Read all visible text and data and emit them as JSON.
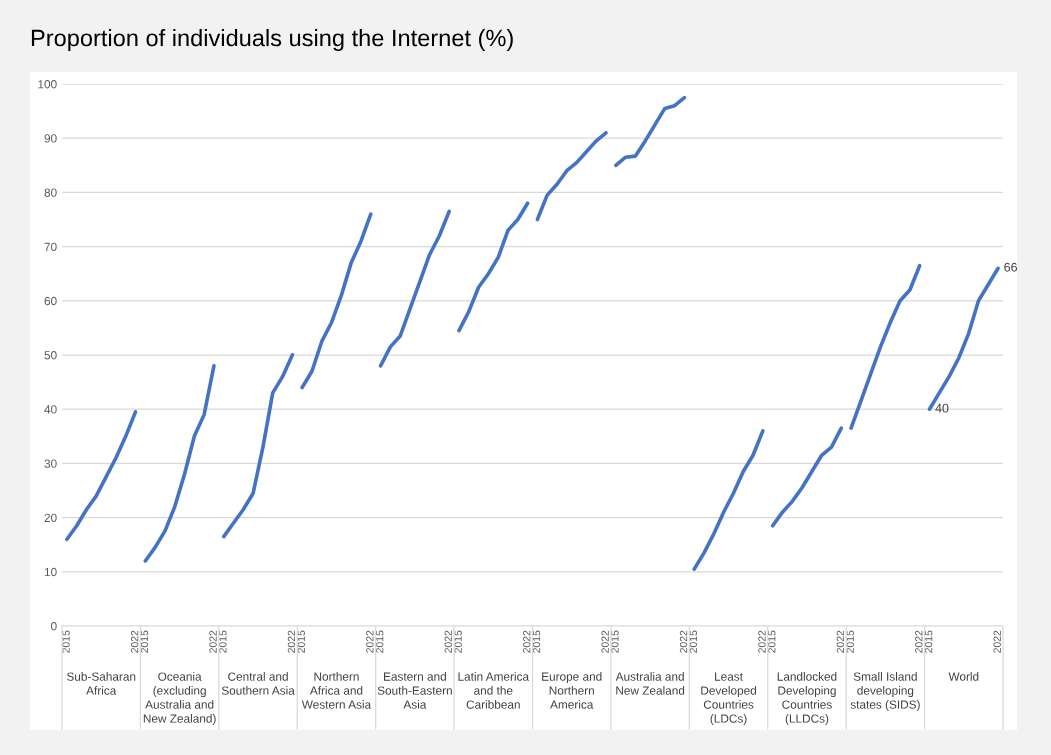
{
  "chart_data": {
    "type": "line",
    "title": "Proportion of individuals using the Internet (%)",
    "categories": [
      "2015",
      null,
      null,
      null,
      null,
      null,
      null,
      "2022",
      "2015",
      null,
      null,
      null,
      null,
      null,
      null,
      "2022",
      "2015",
      null,
      null,
      null,
      null,
      null,
      null,
      "2022",
      "2015",
      null,
      null,
      null,
      null,
      null,
      null,
      "2022",
      "2015",
      null,
      null,
      null,
      null,
      null,
      null,
      "2022",
      "2015",
      null,
      null,
      null,
      null,
      null,
      null,
      "2022",
      "2015",
      null,
      null,
      null,
      null,
      null,
      null,
      "2022",
      "2015",
      null,
      null,
      null,
      null,
      null,
      null,
      "2022",
      "2015",
      null,
      null,
      null,
      null,
      null,
      null,
      "2022",
      "2015",
      null,
      null,
      null,
      null,
      null,
      null,
      "2022",
      "2015",
      null,
      null,
      null,
      null,
      null,
      null,
      "2022",
      "2015",
      null,
      null,
      null,
      null,
      null,
      null,
      "2022"
    ],
    "ylim": [
      0,
      100
    ],
    "yticks": [
      0,
      10,
      20,
      30,
      40,
      50,
      60,
      70,
      80,
      90,
      100
    ],
    "grid": "y",
    "legend": false,
    "annotations": [
      "Sub-Saharan Africa",
      "Oceania (excluding Australia and New Zealand)",
      "Central and Southern Asia",
      "Northern Africa and Western Asia",
      "Eastern and South-Eastern Asia",
      "Latin America and the Caribbean",
      "Europe and Northern America",
      "Australia and New Zealand",
      "Least Developed Countries (LDCs)",
      "Landlocked Developing Countries (LLDCs)",
      "Small Island developing states (SIDS)",
      "World"
    ],
    "series": [
      {
        "color": "#4472c4",
        "values": [
          16,
          18.5,
          21.5,
          24,
          27.5,
          31,
          35,
          39.5,
          null,
          null,
          null,
          null,
          null,
          null,
          null,
          null,
          null,
          null,
          null,
          null,
          null,
          null,
          null,
          null,
          null,
          null,
          null,
          null,
          null,
          null,
          null,
          null,
          null,
          null,
          null,
          null,
          null,
          null,
          null,
          null,
          null,
          null,
          null,
          null,
          null,
          null,
          null,
          null,
          null,
          null,
          null,
          null,
          null,
          null,
          null,
          null,
          null,
          null,
          null,
          null,
          null,
          null,
          null,
          null,
          null,
          null,
          null,
          null,
          null,
          null,
          null,
          null,
          null,
          null,
          null,
          null,
          null,
          null,
          null,
          null,
          null,
          null,
          null,
          null,
          null,
          null,
          null,
          null,
          null,
          null,
          null,
          null,
          null,
          null,
          null,
          null
        ]
      },
      {
        "color": "#4472c4",
        "values": [
          null,
          null,
          null,
          null,
          null,
          null,
          null,
          null,
          12,
          14.5,
          17.5,
          22,
          28,
          35,
          39,
          48,
          null,
          null,
          null,
          null,
          null,
          null,
          null,
          null,
          null,
          null,
          null,
          null,
          null,
          null,
          null,
          null,
          null,
          null,
          null,
          null,
          null,
          null,
          null,
          null,
          null,
          null,
          null,
          null,
          null,
          null,
          null,
          null,
          null,
          null,
          null,
          null,
          null,
          null,
          null,
          null,
          null,
          null,
          null,
          null,
          null,
          null,
          null,
          null,
          null,
          null,
          null,
          null,
          null,
          null,
          null,
          null,
          null,
          null,
          null,
          null,
          null,
          null,
          null,
          null,
          null,
          null,
          null,
          null,
          null,
          null,
          null,
          null,
          null,
          null,
          null,
          null,
          null,
          null,
          null,
          null
        ]
      },
      {
        "color": "#4472c4",
        "values": [
          null,
          null,
          null,
          null,
          null,
          null,
          null,
          null,
          null,
          null,
          null,
          null,
          null,
          null,
          null,
          null,
          16.5,
          19,
          21.5,
          24.5,
          33,
          43,
          46,
          50,
          null,
          null,
          null,
          null,
          null,
          null,
          null,
          null,
          null,
          null,
          null,
          null,
          null,
          null,
          null,
          null,
          null,
          null,
          null,
          null,
          null,
          null,
          null,
          null,
          null,
          null,
          null,
          null,
          null,
          null,
          null,
          null,
          null,
          null,
          null,
          null,
          null,
          null,
          null,
          null,
          null,
          null,
          null,
          null,
          null,
          null,
          null,
          null,
          null,
          null,
          null,
          null,
          null,
          null,
          null,
          null,
          null,
          null,
          null,
          null,
          null,
          null,
          null,
          null,
          null,
          null,
          null,
          null,
          null,
          null,
          null,
          null
        ]
      },
      {
        "color": "#4472c4",
        "values": [
          null,
          null,
          null,
          null,
          null,
          null,
          null,
          null,
          null,
          null,
          null,
          null,
          null,
          null,
          null,
          null,
          null,
          null,
          null,
          null,
          null,
          null,
          null,
          null,
          44,
          47,
          52.5,
          56,
          61,
          67,
          71,
          76,
          null,
          null,
          null,
          null,
          null,
          null,
          null,
          null,
          null,
          null,
          null,
          null,
          null,
          null,
          null,
          null,
          null,
          null,
          null,
          null,
          null,
          null,
          null,
          null,
          null,
          null,
          null,
          null,
          null,
          null,
          null,
          null,
          null,
          null,
          null,
          null,
          null,
          null,
          null,
          null,
          null,
          null,
          null,
          null,
          null,
          null,
          null,
          null,
          null,
          null,
          null,
          null,
          null,
          null,
          null,
          null,
          null,
          null,
          null,
          null,
          null,
          null,
          null,
          null
        ]
      },
      {
        "color": "#4472c4",
        "values": [
          null,
          null,
          null,
          null,
          null,
          null,
          null,
          null,
          null,
          null,
          null,
          null,
          null,
          null,
          null,
          null,
          null,
          null,
          null,
          null,
          null,
          null,
          null,
          null,
          null,
          null,
          null,
          null,
          null,
          null,
          null,
          null,
          48,
          51.5,
          53.5,
          58.5,
          63.5,
          68.5,
          72,
          76.5,
          null,
          null,
          null,
          null,
          null,
          null,
          null,
          null,
          null,
          null,
          null,
          null,
          null,
          null,
          null,
          null,
          null,
          null,
          null,
          null,
          null,
          null,
          null,
          null,
          null,
          null,
          null,
          null,
          null,
          null,
          null,
          null,
          null,
          null,
          null,
          null,
          null,
          null,
          null,
          null,
          null,
          null,
          null,
          null,
          null,
          null,
          null,
          null,
          null,
          null,
          null,
          null,
          null,
          null,
          null,
          null
        ]
      },
      {
        "color": "#4472c4",
        "values": [
          null,
          null,
          null,
          null,
          null,
          null,
          null,
          null,
          null,
          null,
          null,
          null,
          null,
          null,
          null,
          null,
          null,
          null,
          null,
          null,
          null,
          null,
          null,
          null,
          null,
          null,
          null,
          null,
          null,
          null,
          null,
          null,
          null,
          null,
          null,
          null,
          null,
          null,
          null,
          null,
          54.5,
          58,
          62.5,
          65,
          68,
          73,
          75,
          78,
          null,
          null,
          null,
          null,
          null,
          null,
          null,
          null,
          null,
          null,
          null,
          null,
          null,
          null,
          null,
          null,
          null,
          null,
          null,
          null,
          null,
          null,
          null,
          null,
          null,
          null,
          null,
          null,
          null,
          null,
          null,
          null,
          null,
          null,
          null,
          null,
          null,
          null,
          null,
          null,
          null,
          null,
          null,
          null,
          null,
          null,
          null,
          null
        ]
      },
      {
        "color": "#4472c4",
        "values": [
          null,
          null,
          null,
          null,
          null,
          null,
          null,
          null,
          null,
          null,
          null,
          null,
          null,
          null,
          null,
          null,
          null,
          null,
          null,
          null,
          null,
          null,
          null,
          null,
          null,
          null,
          null,
          null,
          null,
          null,
          null,
          null,
          null,
          null,
          null,
          null,
          null,
          null,
          null,
          null,
          null,
          null,
          null,
          null,
          null,
          null,
          null,
          null,
          75,
          79.5,
          81.5,
          84,
          85.5,
          87.5,
          89.5,
          91,
          null,
          null,
          null,
          null,
          null,
          null,
          null,
          null,
          null,
          null,
          null,
          null,
          null,
          null,
          null,
          null,
          null,
          null,
          null,
          null,
          null,
          null,
          null,
          null,
          null,
          null,
          null,
          null,
          null,
          null,
          null,
          null,
          null,
          null,
          null,
          null,
          null,
          null,
          null,
          null
        ]
      },
      {
        "color": "#4472c4",
        "values": [
          null,
          null,
          null,
          null,
          null,
          null,
          null,
          null,
          null,
          null,
          null,
          null,
          null,
          null,
          null,
          null,
          null,
          null,
          null,
          null,
          null,
          null,
          null,
          null,
          null,
          null,
          null,
          null,
          null,
          null,
          null,
          null,
          null,
          null,
          null,
          null,
          null,
          null,
          null,
          null,
          null,
          null,
          null,
          null,
          null,
          null,
          null,
          null,
          null,
          null,
          null,
          null,
          null,
          null,
          null,
          null,
          85,
          86.5,
          86.7,
          89.5,
          92.5,
          95.5,
          96,
          97.5,
          null,
          null,
          null,
          null,
          null,
          null,
          null,
          null,
          null,
          null,
          null,
          null,
          null,
          null,
          null,
          null,
          null,
          null,
          null,
          null,
          null,
          null,
          null,
          null,
          null,
          null,
          null,
          null,
          null,
          null,
          null,
          null
        ]
      },
      {
        "color": "#4472c4",
        "values": [
          null,
          null,
          null,
          null,
          null,
          null,
          null,
          null,
          null,
          null,
          null,
          null,
          null,
          null,
          null,
          null,
          null,
          null,
          null,
          null,
          null,
          null,
          null,
          null,
          null,
          null,
          null,
          null,
          null,
          null,
          null,
          null,
          null,
          null,
          null,
          null,
          null,
          null,
          null,
          null,
          null,
          null,
          null,
          null,
          null,
          null,
          null,
          null,
          null,
          null,
          null,
          null,
          null,
          null,
          null,
          null,
          null,
          null,
          null,
          null,
          null,
          null,
          null,
          null,
          10.5,
          13.5,
          17,
          21,
          24.5,
          28.5,
          31.5,
          36,
          null,
          null,
          null,
          null,
          null,
          null,
          null,
          null,
          null,
          null,
          null,
          null,
          null,
          null,
          null,
          null,
          null,
          null,
          null,
          null,
          null,
          null,
          null,
          null
        ]
      },
      {
        "color": "#4472c4",
        "values": [
          null,
          null,
          null,
          null,
          null,
          null,
          null,
          null,
          null,
          null,
          null,
          null,
          null,
          null,
          null,
          null,
          null,
          null,
          null,
          null,
          null,
          null,
          null,
          null,
          null,
          null,
          null,
          null,
          null,
          null,
          null,
          null,
          null,
          null,
          null,
          null,
          null,
          null,
          null,
          null,
          null,
          null,
          null,
          null,
          null,
          null,
          null,
          null,
          null,
          null,
          null,
          null,
          null,
          null,
          null,
          null,
          null,
          null,
          null,
          null,
          null,
          null,
          null,
          null,
          null,
          null,
          null,
          null,
          null,
          null,
          null,
          null,
          18.5,
          21,
          23,
          25.5,
          28.5,
          31.5,
          33,
          36.5,
          null,
          null,
          null,
          null,
          null,
          null,
          null,
          null,
          null,
          null,
          null,
          null,
          null,
          null,
          null,
          null
        ]
      },
      {
        "color": "#4472c4",
        "values": [
          null,
          null,
          null,
          null,
          null,
          null,
          null,
          null,
          null,
          null,
          null,
          null,
          null,
          null,
          null,
          null,
          null,
          null,
          null,
          null,
          null,
          null,
          null,
          null,
          null,
          null,
          null,
          null,
          null,
          null,
          null,
          null,
          null,
          null,
          null,
          null,
          null,
          null,
          null,
          null,
          null,
          null,
          null,
          null,
          null,
          null,
          null,
          null,
          null,
          null,
          null,
          null,
          null,
          null,
          null,
          null,
          null,
          null,
          null,
          null,
          null,
          null,
          null,
          null,
          null,
          null,
          null,
          null,
          null,
          null,
          null,
          null,
          null,
          null,
          null,
          null,
          null,
          null,
          null,
          null,
          36.5,
          41.5,
          46.5,
          51.5,
          56,
          60,
          62,
          66.5,
          null,
          null,
          null,
          null,
          null,
          null,
          null,
          null
        ]
      },
      {
        "color": "#4472c4",
        "values": [
          null,
          null,
          null,
          null,
          null,
          null,
          null,
          null,
          null,
          null,
          null,
          null,
          null,
          null,
          null,
          null,
          null,
          null,
          null,
          null,
          null,
          null,
          null,
          null,
          null,
          null,
          null,
          null,
          null,
          null,
          null,
          null,
          null,
          null,
          null,
          null,
          null,
          null,
          null,
          null,
          null,
          null,
          null,
          null,
          null,
          null,
          null,
          null,
          null,
          null,
          null,
          null,
          null,
          null,
          null,
          null,
          null,
          null,
          null,
          null,
          null,
          null,
          null,
          null,
          null,
          null,
          null,
          null,
          null,
          null,
          null,
          null,
          null,
          null,
          null,
          null,
          null,
          null,
          null,
          null,
          null,
          null,
          null,
          null,
          null,
          null,
          null,
          null,
          40,
          43,
          46,
          49.5,
          54,
          60,
          63,
          66
        ],
        "value_labels": [
          null,
          null,
          null,
          null,
          null,
          null,
          null,
          null,
          null,
          null,
          null,
          null,
          null,
          null,
          null,
          null,
          null,
          null,
          null,
          null,
          null,
          null,
          null,
          null,
          null,
          null,
          null,
          null,
          null,
          null,
          null,
          null,
          null,
          null,
          null,
          null,
          null,
          null,
          null,
          null,
          null,
          null,
          null,
          null,
          null,
          null,
          null,
          null,
          null,
          null,
          null,
          null,
          null,
          null,
          null,
          null,
          null,
          null,
          null,
          null,
          null,
          null,
          null,
          null,
          null,
          null,
          null,
          null,
          null,
          null,
          null,
          null,
          null,
          null,
          null,
          null,
          null,
          null,
          null,
          null,
          null,
          null,
          null,
          null,
          null,
          null,
          null,
          null,
          "40",
          null,
          null,
          null,
          null,
          null,
          null,
          "66"
        ]
      }
    ]
  }
}
